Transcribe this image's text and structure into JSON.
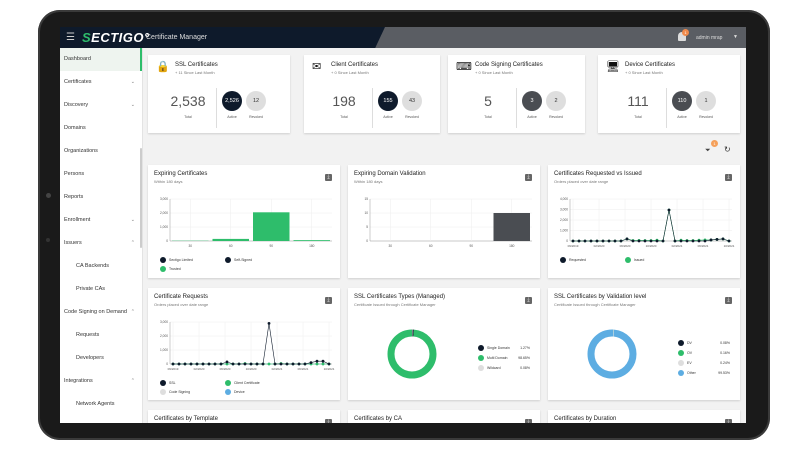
{
  "header": {
    "logo": "SECTIGO",
    "app_title": "Certificate Manager",
    "notifications": "1",
    "user": "admin mrap"
  },
  "sidebar": {
    "items": [
      {
        "label": "Dashboard",
        "active": true
      },
      {
        "label": "Certificates",
        "chevron": "down"
      },
      {
        "label": "Discovery",
        "chevron": "down"
      },
      {
        "label": "Domains"
      },
      {
        "label": "Organizations"
      },
      {
        "label": "Persons"
      },
      {
        "label": "Reports"
      },
      {
        "label": "Enrollment",
        "chevron": "down"
      },
      {
        "label": "Issuers",
        "chevron": "up"
      },
      {
        "label": "CA Backends",
        "sub": true
      },
      {
        "label": "Private CAs",
        "sub": true
      },
      {
        "label": "Code Signing on Demand",
        "chevron": "up"
      },
      {
        "label": "Requests",
        "sub": true
      },
      {
        "label": "Developers",
        "sub": true
      },
      {
        "label": "Integrations",
        "chevron": "up"
      },
      {
        "label": "Network Agents",
        "sub": true
      }
    ]
  },
  "stats": [
    {
      "title": "SSL Certificates",
      "since": "+ 11 Since Last Month",
      "total": "2,538",
      "active": "2,526",
      "revoked": "12",
      "icon": "lock-icon"
    },
    {
      "title": "Client Certificates",
      "since": "+ 0 Since Last Month",
      "total": "198",
      "active": "155",
      "revoked": "43",
      "icon": "envelope-icon"
    },
    {
      "title": "Code Signing Certificates",
      "since": "+ 0 Since Last Month",
      "total": "5",
      "active": "3",
      "revoked": "2",
      "icon": "code-sign-icon"
    },
    {
      "title": "Device Certificates",
      "since": "+ 0 Since Last Month",
      "total": "111",
      "active": "110",
      "revoked": "1",
      "icon": "monitor-icon"
    }
  ],
  "stat_labels": {
    "total": "Total",
    "active": "Active",
    "revoked": "Revoked"
  },
  "toolbar": {
    "filter_badge": "1"
  },
  "colors": {
    "navy": "#0e1a2b",
    "green": "#2ebd6b",
    "gray": "#4a4d52",
    "light": "#dedede",
    "blue": "#5dade2"
  },
  "cards": {
    "expiring_certs": {
      "title": "Expiring Certificates",
      "subtitle": "Within 180 days"
    },
    "expiring_dv": {
      "title": "Expiring Domain Validation",
      "subtitle": "Within 180 days"
    },
    "req_vs_issued": {
      "title": "Certificates Requested vs Issued",
      "subtitle": "Orders placed over date range"
    },
    "cert_requests": {
      "title": "Certificate Requests",
      "subtitle": "Orders placed over date range"
    },
    "ssl_types": {
      "title": "SSL Certificates Types (Managed)",
      "subtitle": "Certificate Issued through Certificate Manager"
    },
    "ssl_validation": {
      "title": "SSL Certificates by Validation level",
      "subtitle": "Certificate Issued through Certificate Manager"
    },
    "by_template": {
      "title": "Certificates by Template"
    },
    "by_ca": {
      "title": "Certificates by CA"
    },
    "by_duration": {
      "title": "Certificates by Duration"
    }
  },
  "chart_data": [
    {
      "type": "bar",
      "id": "expiring_certs",
      "categories": [
        "30",
        "60",
        "90",
        "180"
      ],
      "ylim": [
        0,
        3000
      ],
      "yticks": [
        "0",
        "1,000",
        "2,000",
        "3,000"
      ],
      "series": [
        {
          "name": "Sectigo Limited",
          "color": "#0e1a2b",
          "values": [
            0,
            0,
            0,
            0
          ]
        },
        {
          "name": "Self-Signed",
          "color": "#0e1a2b",
          "values": [
            0,
            0,
            0,
            0
          ]
        },
        {
          "name": "Trusted",
          "color": "#2ebd6b",
          "values": [
            20,
            150,
            2050,
            60
          ]
        }
      ]
    },
    {
      "type": "bar",
      "id": "expiring_dv",
      "categories": [
        "30",
        "60",
        "90",
        "180"
      ],
      "ylim": [
        0,
        15
      ],
      "yticks": [
        "0",
        "5",
        "10",
        "15"
      ],
      "series": [
        {
          "color": "#4a4d52",
          "values": [
            0,
            0,
            0,
            10
          ]
        }
      ]
    },
    {
      "type": "line",
      "id": "req_vs_issued",
      "xticks": [
        "09/2019",
        "02/2020",
        "06/2020",
        "10/2020",
        "02/2021",
        "06/2021",
        "10/2021"
      ],
      "ylim": [
        0,
        4000
      ],
      "yticks": [
        "0",
        "1,000",
        "2,000",
        "3,000",
        "4,000"
      ],
      "series": [
        {
          "name": "Requested",
          "color": "#0e1a2b",
          "values": [
            0,
            0,
            0,
            0,
            0,
            0,
            0,
            0,
            0,
            200,
            0,
            0,
            0,
            0,
            0,
            0,
            2950,
            0,
            0,
            0,
            0,
            0,
            0,
            100,
            150,
            200,
            0
          ]
        },
        {
          "name": "Issued",
          "color": "#2ebd6b",
          "values": [
            0,
            0,
            0,
            0,
            0,
            0,
            0,
            0,
            0,
            200,
            50,
            60,
            50,
            50,
            80,
            0,
            2950,
            0,
            80,
            50,
            50,
            80,
            100,
            100,
            150,
            200,
            0
          ]
        }
      ]
    },
    {
      "type": "line",
      "id": "cert_requests",
      "xticks": [
        "09/2019",
        "02/2020",
        "06/2020",
        "10/2020",
        "02/2021",
        "06/2021",
        "10/2021"
      ],
      "ylim": [
        0,
        3000
      ],
      "yticks": [
        "0",
        "1,000",
        "2,000",
        "3,000"
      ],
      "series": [
        {
          "name": "SSL",
          "color": "#0e1a2b",
          "values": [
            0,
            0,
            0,
            0,
            0,
            0,
            0,
            0,
            0,
            150,
            0,
            0,
            0,
            0,
            0,
            0,
            2900,
            0,
            0,
            0,
            0,
            0,
            0,
            100,
            200,
            200,
            0
          ]
        },
        {
          "name": "Client Certificate",
          "color": "#2ebd6b",
          "values": [
            0,
            0,
            0,
            0,
            0,
            0,
            0,
            0,
            0,
            0,
            0,
            0,
            30,
            0,
            0,
            0,
            0,
            0,
            30,
            0,
            0,
            0,
            0,
            0,
            0,
            0,
            0
          ]
        },
        {
          "name": "Code Signing",
          "color": "#dedede",
          "values": [
            0,
            0,
            0,
            0,
            0,
            0,
            0,
            0,
            0,
            0,
            0,
            0,
            0,
            0,
            0,
            0,
            0,
            0,
            0,
            0,
            0,
            0,
            0,
            0,
            0,
            0,
            0
          ]
        },
        {
          "name": "Device",
          "color": "#5dade2",
          "values": [
            0,
            0,
            0,
            0,
            0,
            0,
            0,
            0,
            0,
            0,
            0,
            0,
            0,
            0,
            0,
            0,
            0,
            0,
            0,
            0,
            0,
            0,
            0,
            0,
            0,
            0,
            0
          ]
        }
      ]
    },
    {
      "type": "pie",
      "id": "ssl_types",
      "slices": [
        {
          "name": "Single Domain",
          "pct": "1.27%",
          "value": 1.27,
          "color": "#0e1a2b"
        },
        {
          "name": "Multi Domain",
          "pct": "98.65%",
          "value": 98.65,
          "color": "#2ebd6b"
        },
        {
          "name": "Wildcard",
          "pct": "0.08%",
          "value": 0.08,
          "color": "#dedede"
        }
      ]
    },
    {
      "type": "pie",
      "id": "ssl_validation",
      "slices": [
        {
          "name": "DV",
          "pct": "0.08%",
          "value": 0.08,
          "color": "#0e1a2b"
        },
        {
          "name": "OV",
          "pct": "0.16%",
          "value": 0.16,
          "color": "#2ebd6b"
        },
        {
          "name": "EV",
          "pct": "0.24%",
          "value": 0.24,
          "color": "#dedede"
        },
        {
          "name": "Other",
          "pct": "99.53%",
          "value": 99.53,
          "color": "#5dade2"
        }
      ]
    }
  ]
}
